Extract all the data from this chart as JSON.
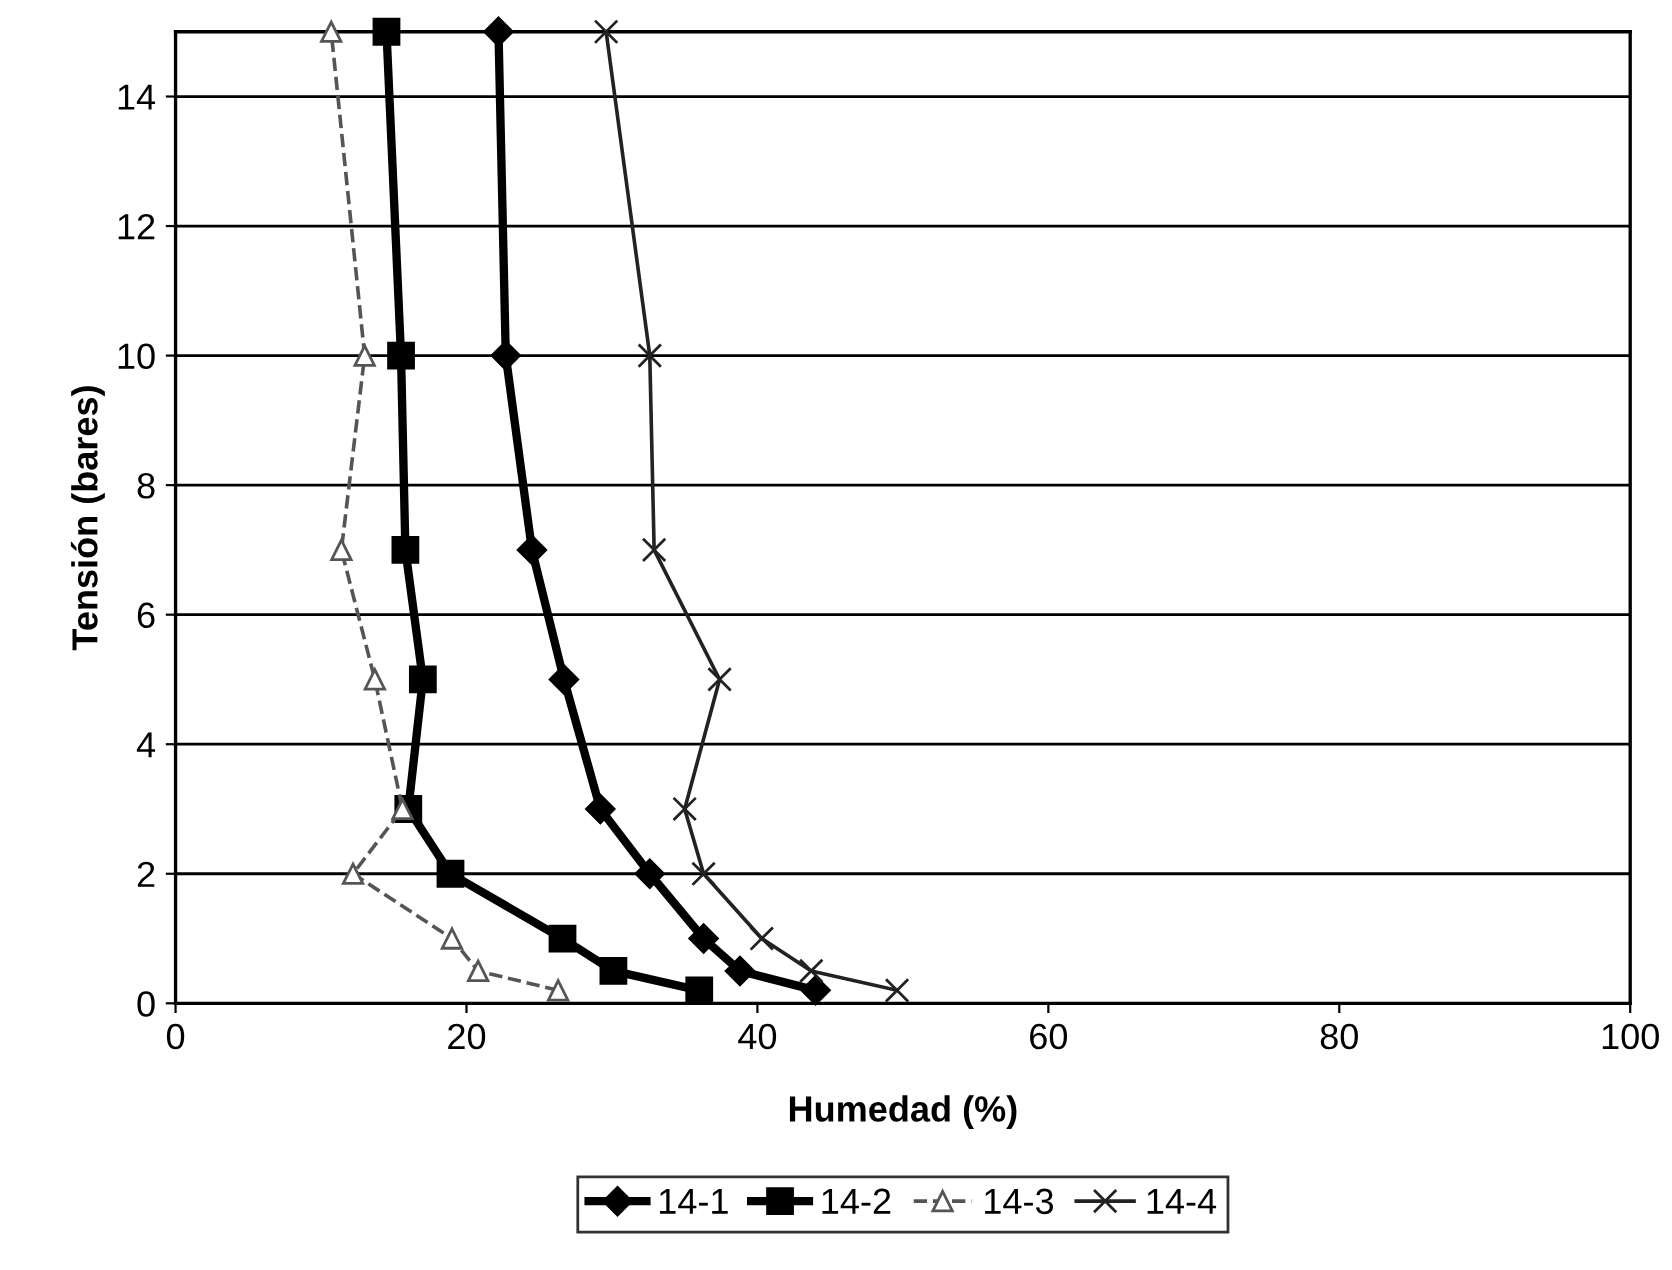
{
  "chart_data": {
    "type": "line",
    "xlabel": "Humedad (%)",
    "ylabel": "Tensión (bares)",
    "xlim": [
      0,
      100
    ],
    "xticks": [
      0,
      20,
      40,
      60,
      80,
      100
    ],
    "ylim": [
      0,
      15
    ],
    "yticks": [
      0,
      2,
      4,
      6,
      8,
      10,
      12,
      14
    ],
    "grid": "y",
    "legend": "bottom",
    "series": [
      {
        "name": "14-1",
        "color": "#000000",
        "marker": "diamond",
        "line_style": "solid",
        "x": [
          44,
          38.8,
          36.3,
          32.6,
          29.2,
          26.7,
          24.5,
          22.7,
          22.2
        ],
        "values": [
          0.2,
          0.5,
          1,
          2,
          3,
          5,
          7,
          10,
          15
        ]
      },
      {
        "name": "14-2",
        "color": "#000000",
        "marker": "square",
        "line_style": "solid",
        "x": [
          36,
          30.1,
          26.6,
          18.9,
          16,
          17,
          15.8,
          15.5,
          14.5
        ],
        "values": [
          0.2,
          0.5,
          1,
          2,
          3,
          5,
          7,
          10,
          15
        ]
      },
      {
        "name": "14-3",
        "color": "#555555",
        "marker": "triangle",
        "line_style": "dashed",
        "x": [
          26.3,
          20.8,
          19,
          12.2,
          15.6,
          13.7,
          11.4,
          13,
          10.7
        ],
        "values": [
          0.2,
          0.5,
          1,
          2,
          3,
          5,
          7,
          10,
          15
        ]
      },
      {
        "name": "14-4",
        "color": "#222222",
        "marker": "cross",
        "line_style": "solid",
        "x": [
          49.6,
          43.7,
          40.3,
          36.3,
          35,
          37.4,
          32.9,
          32.6,
          29.6
        ],
        "values": [
          0.2,
          0.5,
          1,
          2,
          3,
          5,
          7,
          10,
          15
        ]
      }
    ]
  }
}
